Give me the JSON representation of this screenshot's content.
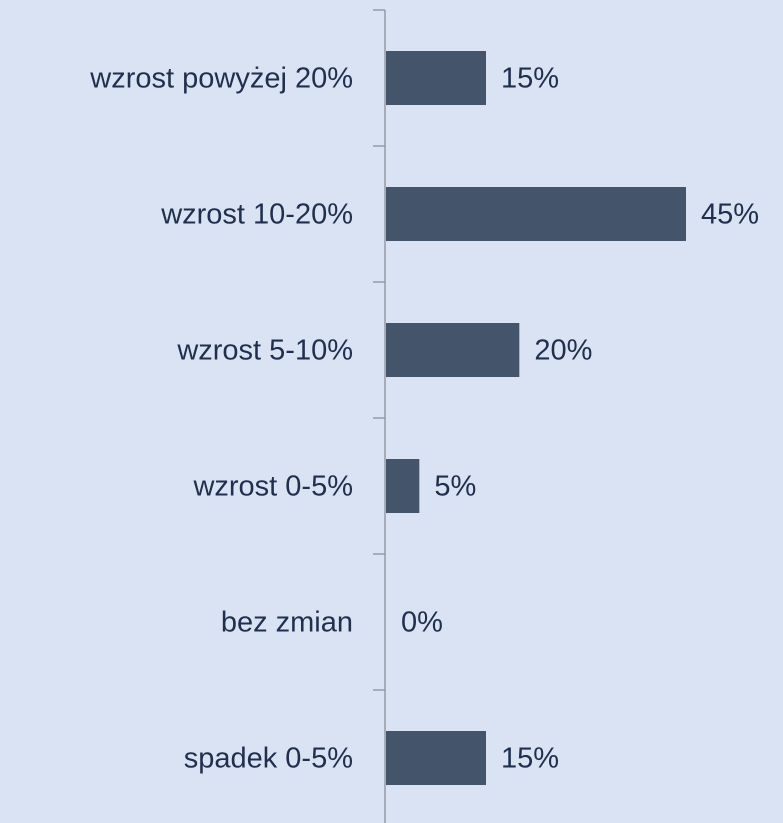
{
  "chart_data": {
    "type": "bar",
    "orientation": "horizontal",
    "categories": [
      "wzrost powyżej 20%",
      "wzrost 10-20%",
      "wzrost 5-10%",
      "wzrost 0-5%",
      "bez zmian",
      "spadek 0-5%"
    ],
    "values": [
      15,
      45,
      20,
      5,
      0,
      15
    ],
    "value_labels": [
      "15%",
      "45%",
      "20%",
      "5%",
      "0%",
      "15%"
    ],
    "color": "#44546a"
  }
}
